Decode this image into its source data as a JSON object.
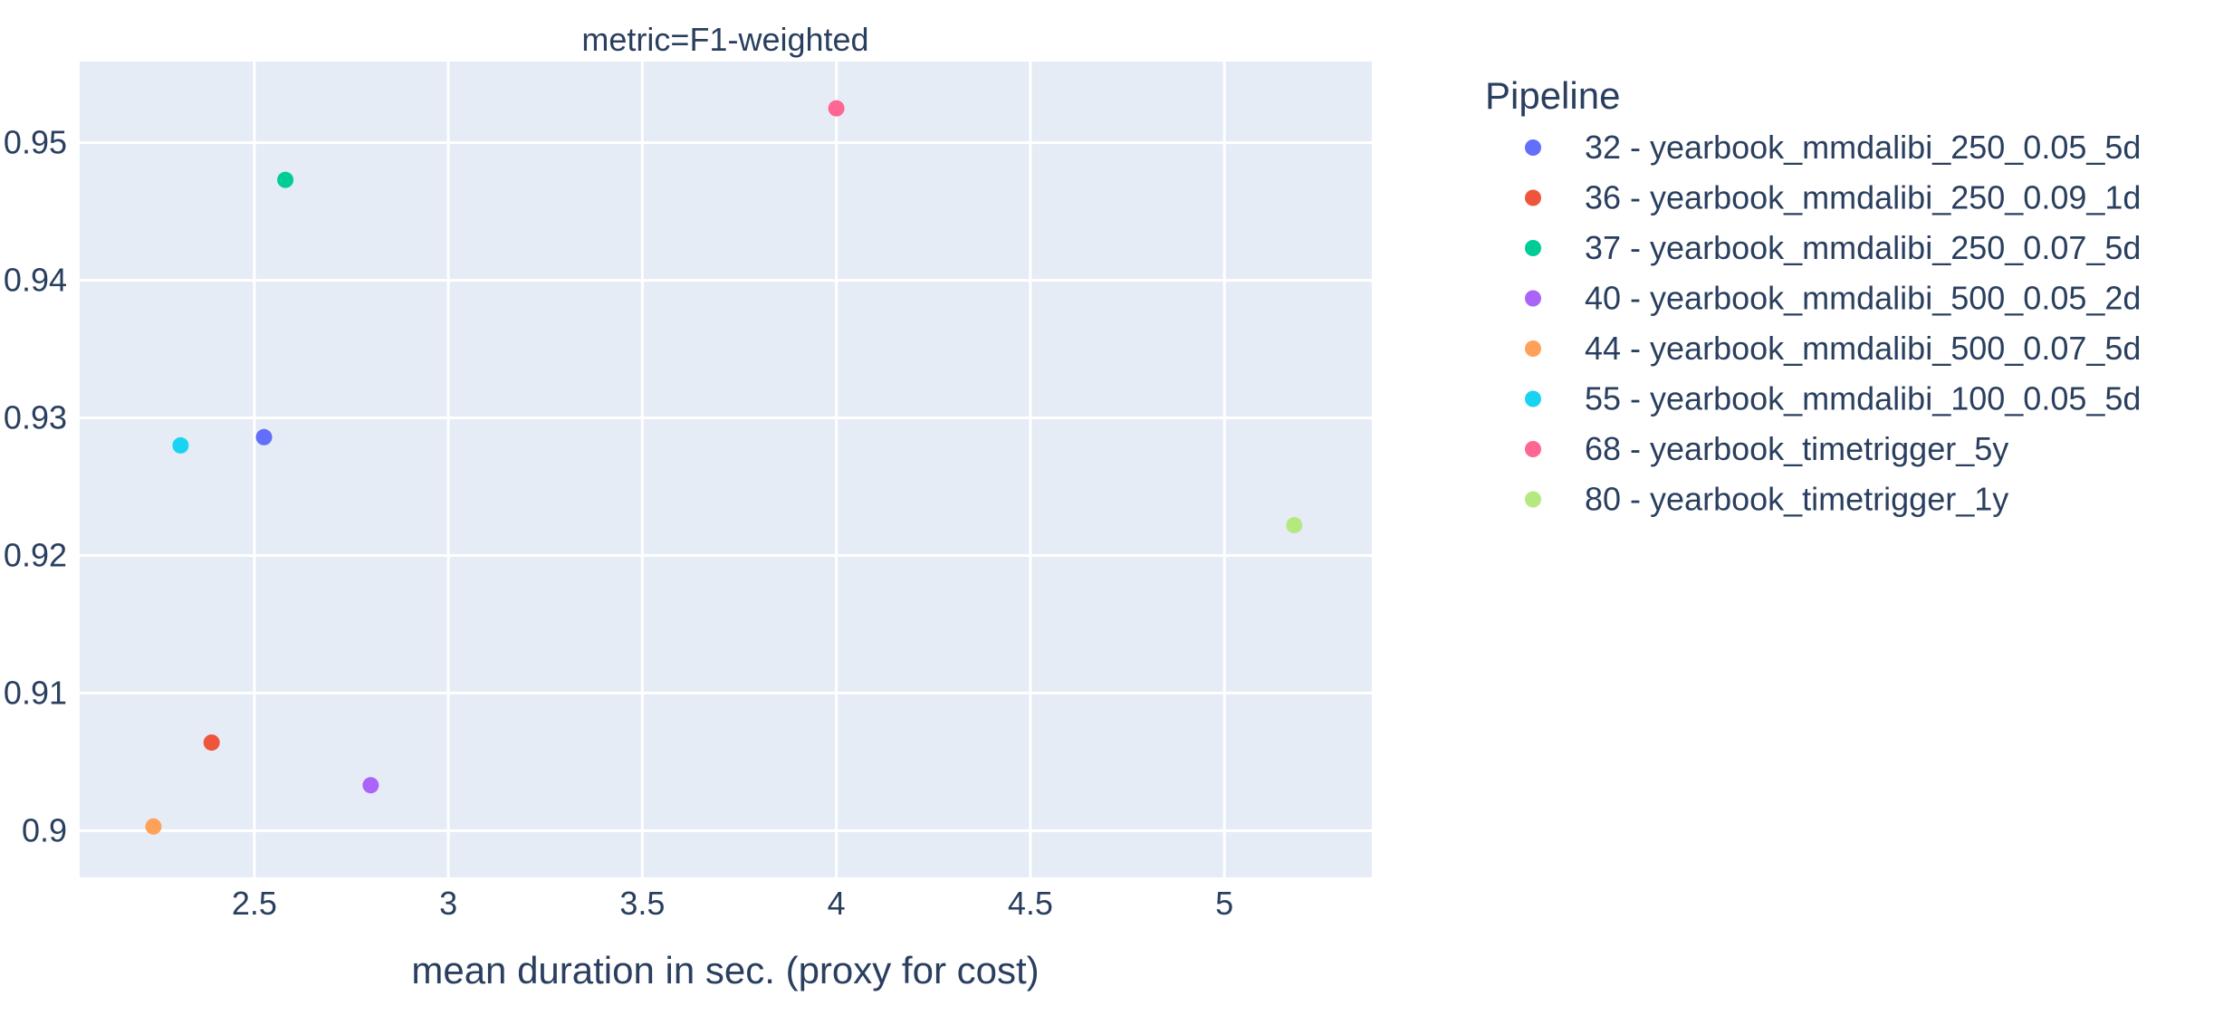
{
  "chart_data": {
    "type": "scatter",
    "title": "metric=F1-weighted",
    "xlabel": "mean duration in sec. (proxy for cost)",
    "ylabel": "",
    "xlim": [
      2.05,
      5.38
    ],
    "ylim": [
      0.8966,
      0.9559
    ],
    "x_ticks": [
      2.5,
      3,
      3.5,
      4,
      4.5,
      5
    ],
    "x_tick_labels": [
      "2.5",
      "3",
      "3.5",
      "4",
      "4.5",
      "5"
    ],
    "y_ticks": [
      0.9,
      0.91,
      0.92,
      0.93,
      0.94,
      0.95
    ],
    "y_tick_labels": [
      "0.9",
      "0.91",
      "0.92",
      "0.93",
      "0.94",
      "0.95"
    ],
    "grid": true,
    "legend_title": "Pipeline",
    "legend_position": "right",
    "series": [
      {
        "name": "32 - yearbook_mmdalibi_250_0.05_5d",
        "color": "#636efa",
        "x": [
          2.525
        ],
        "y": [
          0.9286
        ]
      },
      {
        "name": "36 - yearbook_mmdalibi_250_0.09_1d",
        "color": "#EF553B",
        "x": [
          2.39
        ],
        "y": [
          0.9064
        ]
      },
      {
        "name": "37 - yearbook_mmdalibi_250_0.07_5d",
        "color": "#00cc96",
        "x": [
          2.58
        ],
        "y": [
          0.9473
        ]
      },
      {
        "name": "40 - yearbook_mmdalibi_500_0.05_2d",
        "color": "#ab63fa",
        "x": [
          2.8
        ],
        "y": [
          0.9033
        ]
      },
      {
        "name": "44 - yearbook_mmdalibi_500_0.07_5d",
        "color": "#FFA15A",
        "x": [
          2.24
        ],
        "y": [
          0.9003
        ]
      },
      {
        "name": "55 - yearbook_mmdalibi_100_0.05_5d",
        "color": "#19d3f3",
        "x": [
          2.31
        ],
        "y": [
          0.928
        ]
      },
      {
        "name": "68 - yearbook_timetrigger_5y",
        "color": "#FF6692",
        "x": [
          4.0
        ],
        "y": [
          0.9525
        ]
      },
      {
        "name": "80 - yearbook_timetrigger_1y",
        "color": "#B6E880",
        "x": [
          5.18
        ],
        "y": [
          0.9222
        ]
      }
    ]
  }
}
